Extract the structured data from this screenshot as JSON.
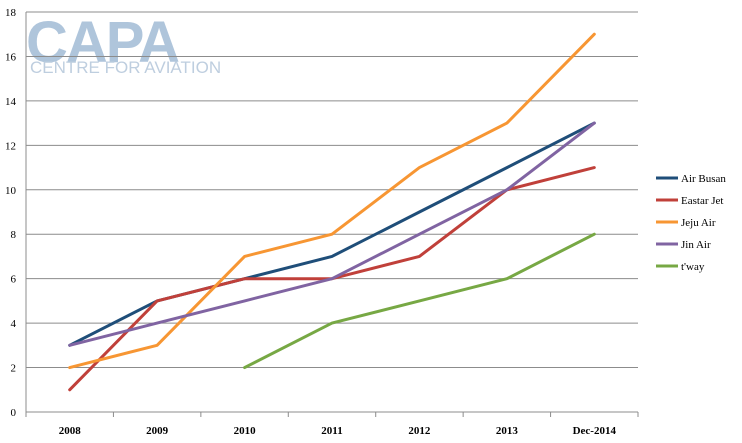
{
  "watermark": {
    "logo_text": "CAPA",
    "tagline": "CENTRE FOR AVIATION"
  },
  "chart_data": {
    "type": "line",
    "categories": [
      "2008",
      "2009",
      "2010",
      "2011",
      "2012",
      "2013",
      "Dec-2014"
    ],
    "ylim": [
      0,
      18
    ],
    "yticks": [
      0,
      2,
      4,
      6,
      8,
      10,
      12,
      14,
      16,
      18
    ],
    "grid": "horizontal",
    "legend_position": "right",
    "series": [
      {
        "name": "Air Busan",
        "color": "#1f4e79",
        "values": [
          3,
          5,
          6,
          7,
          9,
          11,
          13
        ]
      },
      {
        "name": "Eastar Jet",
        "color": "#c0403a",
        "values": [
          1,
          5,
          6,
          6,
          7,
          10,
          11
        ]
      },
      {
        "name": "Jeju Air",
        "color": "#f79633",
        "values": [
          2,
          3,
          7,
          8,
          11,
          13,
          17
        ]
      },
      {
        "name": "Jin Air",
        "color": "#8064a2",
        "values": [
          3,
          4,
          5,
          6,
          8,
          10,
          13
        ]
      },
      {
        "name": "t'way",
        "color": "#77a844",
        "values": [
          null,
          null,
          2,
          4,
          5,
          6,
          8
        ]
      }
    ]
  }
}
